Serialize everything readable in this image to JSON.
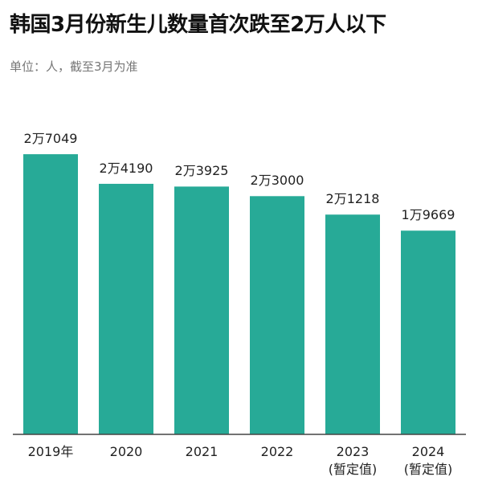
{
  "chart_data": {
    "type": "bar",
    "title": "韩国3月份新生儿数量首次跌至2万人以下",
    "subtitle": "单位：人，截至3月为准",
    "categories": [
      "2019年",
      "2020",
      "2021",
      "2022",
      "2023\n(暂定值)",
      "2024\n(暂定值)"
    ],
    "values": [
      27049,
      24190,
      23925,
      23000,
      21218,
      19669
    ],
    "value_labels": [
      "2万7049",
      "2万4190",
      "2万3925",
      "2万3000",
      "2万1218",
      "1万9669"
    ],
    "color": "#27aa97",
    "ylim": [
      0,
      30000
    ]
  }
}
